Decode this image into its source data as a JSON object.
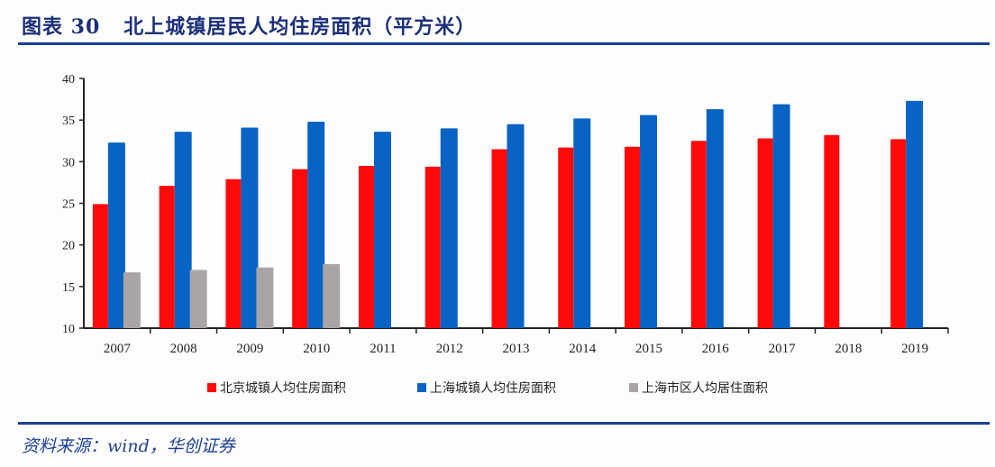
{
  "header": {
    "title": "图表 30   北上城镇居民人均住房面积（平方米）"
  },
  "footer": {
    "source": "资料来源：wind，华创证券"
  },
  "chart_data": {
    "type": "bar",
    "title": "",
    "xlabel": "",
    "ylabel": "",
    "ylim": [
      10,
      40
    ],
    "yticks": [
      10,
      15,
      20,
      25,
      30,
      35,
      40
    ],
    "grid": false,
    "legend_position": "bottom",
    "categories": [
      "2007",
      "2008",
      "2009",
      "2010",
      "2011",
      "2012",
      "2013",
      "2014",
      "2015",
      "2016",
      "2017",
      "2018",
      "2019"
    ],
    "series": [
      {
        "name": "北京城镇人均住房面积",
        "color": "#ff0a0a",
        "values": [
          24.9,
          27.1,
          27.9,
          29.1,
          29.5,
          29.4,
          31.5,
          31.7,
          31.8,
          32.5,
          32.8,
          33.2,
          32.7
        ]
      },
      {
        "name": "上海城镇人均住房面积",
        "color": "#0863c4",
        "values": [
          32.3,
          33.6,
          34.1,
          34.8,
          33.6,
          34.0,
          34.5,
          35.2,
          35.6,
          36.3,
          36.9,
          null,
          37.3
        ]
      },
      {
        "name": "上海市区人均居住面积",
        "color": "#a9a5a5",
        "values": [
          16.7,
          17.0,
          17.3,
          17.7,
          null,
          null,
          null,
          null,
          null,
          null,
          null,
          null,
          null
        ]
      }
    ]
  }
}
